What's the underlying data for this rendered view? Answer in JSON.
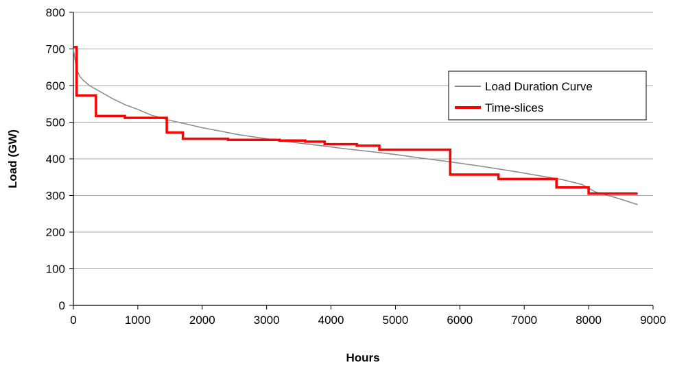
{
  "chart_data": {
    "type": "line",
    "title": "",
    "xlabel": "Hours",
    "ylabel": "Load (GW)",
    "xlim": [
      0,
      9000
    ],
    "ylim": [
      0,
      800
    ],
    "x_ticks": [
      0,
      1000,
      2000,
      3000,
      4000,
      5000,
      6000,
      7000,
      8000,
      9000
    ],
    "y_ticks": [
      0,
      100,
      200,
      300,
      400,
      500,
      600,
      700,
      800
    ],
    "grid": "horizontal",
    "legend_position": "right",
    "series": [
      {
        "name": "Load Duration Curve",
        "color": "#888888",
        "style": "line",
        "x": [
          0,
          30,
          60,
          100,
          150,
          250,
          400,
          600,
          800,
          1000,
          1200,
          1500,
          1800,
          2000,
          2300,
          2600,
          3000,
          3400,
          3800,
          4200,
          4600,
          5000,
          5400,
          5800,
          6000,
          6400,
          6800,
          7200,
          7600,
          7900,
          8100,
          8300,
          8500,
          8760
        ],
        "y": [
          700,
          665,
          640,
          625,
          615,
          600,
          585,
          565,
          548,
          535,
          520,
          505,
          493,
          485,
          475,
          465,
          455,
          445,
          437,
          428,
          420,
          412,
          402,
          393,
          388,
          378,
          367,
          355,
          343,
          330,
          310,
          300,
          290,
          275
        ]
      },
      {
        "name": "Time-slices",
        "color": "#ff0000",
        "style": "step",
        "x": [
          0,
          50,
          50,
          350,
          350,
          800,
          800,
          1450,
          1450,
          1700,
          1700,
          2400,
          2400,
          3200,
          3200,
          3600,
          3600,
          3900,
          3900,
          4400,
          4400,
          4750,
          4750,
          5850,
          5850,
          6600,
          6600,
          7500,
          7500,
          8000,
          8000,
          8760
        ],
        "y": [
          705,
          705,
          573,
          573,
          517,
          517,
          512,
          512,
          472,
          472,
          455,
          455,
          452,
          452,
          450,
          450,
          447,
          447,
          440,
          440,
          436,
          436,
          425,
          425,
          357,
          357,
          345,
          345,
          322,
          322,
          305,
          305
        ]
      }
    ]
  }
}
